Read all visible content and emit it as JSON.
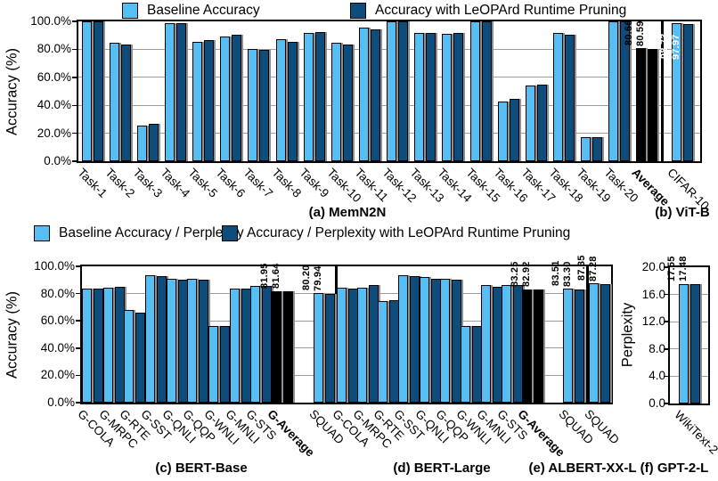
{
  "colors": {
    "baseline": "#56BEF3",
    "pruned": "#0E4C7C",
    "average_bar": "#000000",
    "gridline": "#9c9c9c",
    "bar_shadow": "#8f8f8f"
  },
  "legends": {
    "top": [
      "Baseline Accuracy",
      "Accuracy with LeOPArd Runtime Pruning"
    ],
    "bottom": [
      "Baseline Accuracy / Perplexity",
      "Accuracy / Perplexity with LeOPArd Runtime Pruning"
    ]
  },
  "chart_data": [
    {
      "type": "bar",
      "title": "(a) MemN2N",
      "ylabel": "Accuracy (%)",
      "ylim": [
        0,
        100
      ],
      "yticks": [
        "0.0%",
        "20.0%",
        "40.0%",
        "60.0%",
        "80.0%",
        "100.0%"
      ],
      "categories": [
        "Task-1",
        "Task-2",
        "Task-3",
        "Task-4",
        "Task-5",
        "Task-6",
        "Task-7",
        "Task-8",
        "Task-9",
        "Task-10",
        "Task-11",
        "Task-12",
        "Task-13",
        "Task-14",
        "Task-15",
        "Task-16",
        "Task-17",
        "Task-18",
        "Task-19",
        "Task-20",
        "Average"
      ],
      "series": [
        {
          "name": "Baseline Accuracy",
          "values": [
            100,
            84.5,
            25.5,
            99,
            85.5,
            89.3,
            80.5,
            87,
            91.5,
            85,
            95.5,
            100,
            91.8,
            91,
            100,
            42.5,
            54.3,
            91.5,
            17,
            100,
            80.66
          ]
        },
        {
          "name": "Accuracy with LeOPArd Runtime Pruning",
          "values": [
            100,
            83.2,
            27,
            98.6,
            86.5,
            90.5,
            79.8,
            85.5,
            92.2,
            83.2,
            94.3,
            100,
            91.8,
            91.5,
            100,
            44.5,
            54.6,
            90.5,
            17,
            100,
            80.59
          ]
        }
      ],
      "black_categories": [
        "Average"
      ],
      "bold_categories": [
        "Average"
      ],
      "value_labels": {
        "Average": [
          "80.66",
          "80.59"
        ]
      }
    },
    {
      "type": "bar",
      "title": "(b) ViT-B",
      "ylabel": "Accuracy (%)",
      "ylim": [
        0,
        100
      ],
      "yticks": [
        "0.0%",
        "20.0%",
        "40.0%",
        "60.0%",
        "80.0%",
        "100.0%"
      ],
      "categories": [
        "CIFAR-10"
      ],
      "series": [
        {
          "name": "Baseline Accuracy",
          "values": [
            98.73
          ]
        },
        {
          "name": "Accuracy with LeOPArd Runtime Pruning",
          "values": [
            97.97
          ]
        }
      ],
      "values_inside": true,
      "value_labels": {
        "CIFAR-10": [
          "98.73",
          "97.97"
        ]
      }
    },
    {
      "type": "bar",
      "title": "(c) BERT-Base",
      "ylabel": "Accuracy (%)",
      "ylim": [
        0,
        100
      ],
      "yticks": [
        "0.0%",
        "20.0%",
        "40.0%",
        "60.0%",
        "80.0%",
        "100.0%"
      ],
      "categories": [
        "G-COLA",
        "G-MRPC",
        "G-RTE",
        "G-SST",
        "G-QNLI",
        "G-QQP",
        "G-WNLI",
        "G-MNLI",
        "G-STS",
        "G-Average",
        "SQUAD"
      ],
      "series": [
        {
          "name": "Baseline Accuracy / Perplexity",
          "values": [
            83.4,
            84.2,
            68,
            93.2,
            91,
            91,
            56,
            83.5,
            85.6,
            81.95,
            80.2
          ]
        },
        {
          "name": "Accuracy / Perplexity with LeOPArd Runtime Pruning",
          "values": [
            83.4,
            84.8,
            66,
            92.7,
            90.4,
            90.4,
            56,
            83.5,
            85.8,
            81.64,
            79.94
          ]
        }
      ],
      "black_categories": [
        "G-Average"
      ],
      "bold_categories": [
        "G-Average"
      ],
      "value_labels": {
        "G-Average": [
          "81.95",
          "81.64"
        ],
        "SQUAD": [
          "80.20",
          "79.94"
        ]
      }
    },
    {
      "type": "bar",
      "title": "(d) BERT-Large",
      "ylabel": "Accuracy (%)",
      "ylim": [
        0,
        100
      ],
      "yticks": [
        "0.0%",
        "20.0%",
        "40.0%",
        "60.0%",
        "80.0%",
        "100.0%"
      ],
      "categories": [
        "G-COLA",
        "G-MRPC",
        "G-RTE",
        "G-SST",
        "G-QNLI",
        "G-QQP",
        "G-WNLI",
        "G-MNLI",
        "G-STS",
        "G-Average",
        "SQUAD"
      ],
      "series": [
        {
          "name": "Baseline Accuracy / Perplexity",
          "values": [
            84.6,
            84.6,
            74.5,
            93.5,
            92.2,
            91,
            56,
            86,
            86.3,
            83.25,
            83.51
          ]
        },
        {
          "name": "Accuracy / Perplexity with LeOPArd Runtime Pruning",
          "values": [
            83.8,
            86.2,
            75.2,
            92.8,
            90.8,
            90.2,
            56.5,
            85.2,
            86.3,
            82.92,
            83.3
          ]
        }
      ],
      "black_categories": [
        "G-Average"
      ],
      "bold_categories": [
        "G-Average"
      ],
      "value_labels": {
        "G-Average": [
          "83.25",
          "82.92"
        ],
        "SQUAD": [
          "83.51",
          "83.30"
        ]
      }
    },
    {
      "type": "bar",
      "title": "(e) ALBERT-XX-L",
      "ylabel": "Accuracy (%)",
      "ylim": [
        0,
        100
      ],
      "yticks": [
        "0.0%",
        "20.0%",
        "40.0%",
        "60.0%",
        "80.0%",
        "100.0%"
      ],
      "categories": [
        "SQUAD"
      ],
      "series": [
        {
          "name": "Baseline Accuracy / Perplexity",
          "values": [
            87.35
          ]
        },
        {
          "name": "Accuracy / Perplexity with LeOPArd Runtime Pruning",
          "values": [
            87.28
          ]
        }
      ],
      "value_labels": {
        "SQUAD": [
          "87.35",
          "87.28"
        ]
      }
    },
    {
      "type": "bar",
      "title": "(f) GPT-2-L",
      "ylabel": "Perplexity",
      "ylim": [
        0,
        20
      ],
      "yticks": [
        "0.0",
        "4.0",
        "8.0",
        "12.0",
        "16.0",
        "20.0"
      ],
      "categories": [
        "WikiText-2"
      ],
      "series": [
        {
          "name": "Baseline Accuracy / Perplexity",
          "values": [
            17.55
          ]
        },
        {
          "name": "Accuracy / Perplexity with LeOPArd Runtime Pruning",
          "values": [
            17.48
          ]
        }
      ],
      "value_labels": {
        "WikiText-2": [
          "17.55",
          "17.48"
        ]
      }
    }
  ]
}
